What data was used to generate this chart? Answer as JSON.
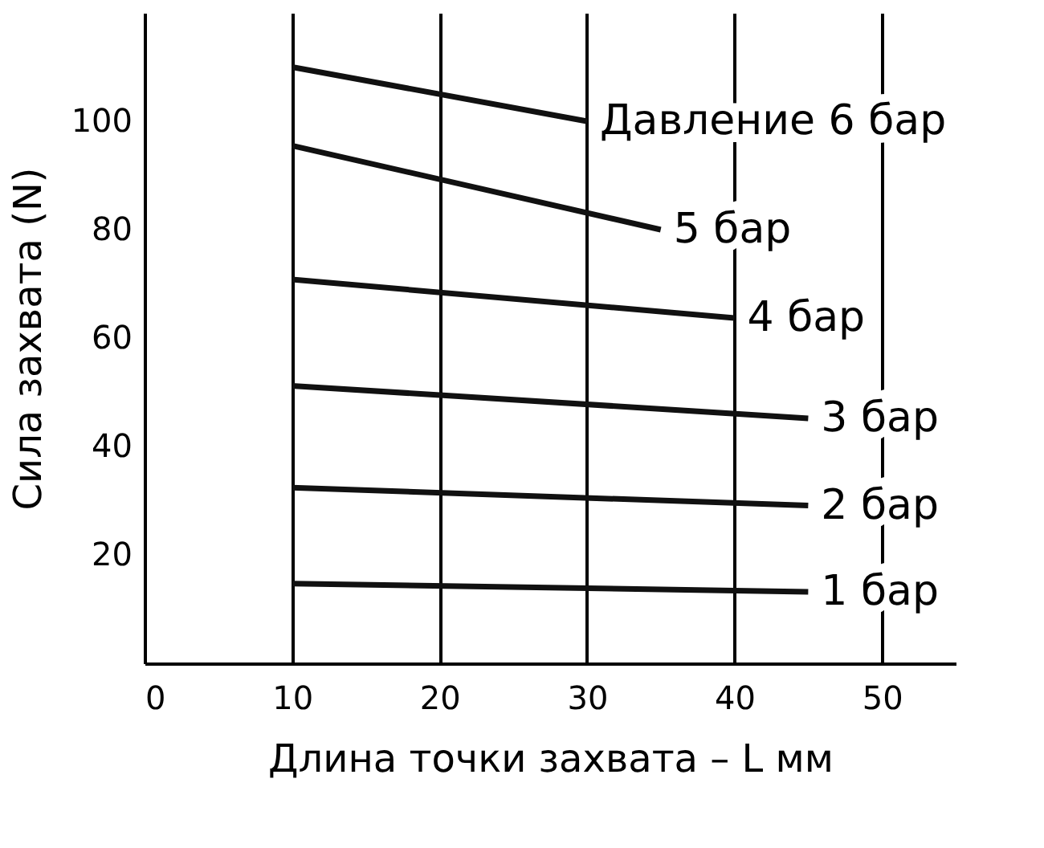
{
  "chart_data": {
    "type": "line",
    "xlabel": "Длина точки захвата – L мм",
    "ylabel": "Сила захвата (N)",
    "xlim": [
      0,
      55
    ],
    "xticks": [
      0,
      10,
      20,
      30,
      40,
      50
    ],
    "ylim": [
      0,
      120
    ],
    "yticks": [
      20,
      40,
      60,
      80,
      100
    ],
    "grid": "x",
    "marker": "none",
    "line_style": "solid",
    "series": [
      {
        "name": "Давление 6 бар",
        "color": "#111111",
        "x": [
          10,
          30
        ],
        "values": [
          110,
          100
        ]
      },
      {
        "name": "5 бар",
        "color": "#111111",
        "x": [
          10,
          35
        ],
        "values": [
          95.5,
          80
        ]
      },
      {
        "name": "4 бар",
        "color": "#111111",
        "x": [
          10,
          40
        ],
        "values": [
          70.8,
          63.7
        ]
      },
      {
        "name": "3 бар",
        "color": "#111111",
        "x": [
          10,
          45
        ],
        "values": [
          51.2,
          45.2
        ]
      },
      {
        "name": "2 бар",
        "color": "#111111",
        "x": [
          10,
          45
        ],
        "values": [
          32.4,
          29.1
        ]
      },
      {
        "name": "1 бар",
        "color": "#111111",
        "x": [
          10,
          45
        ],
        "values": [
          14.7,
          13.2
        ]
      }
    ]
  }
}
